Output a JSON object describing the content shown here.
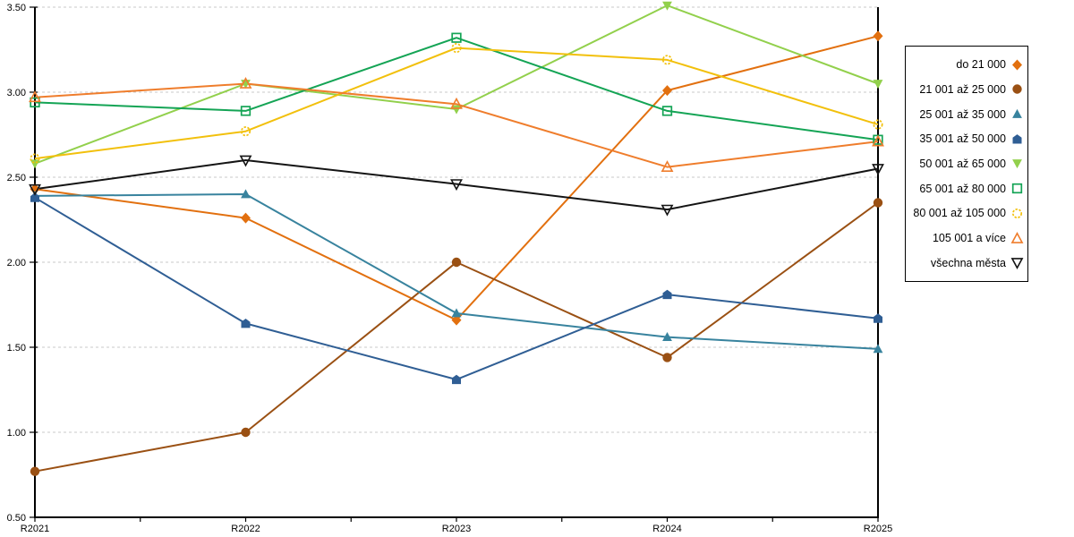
{
  "chart_data": {
    "type": "line",
    "title": "",
    "xlabel": "",
    "ylabel": "",
    "x_categories": [
      "R2021",
      "R2022",
      "R2023",
      "R2024",
      "R2025"
    ],
    "ylim": [
      0.5,
      3.5
    ],
    "ytick_step": 0.5,
    "ytick_labels": [
      "0.50",
      "1.00",
      "1.50",
      "2.00",
      "2.50",
      "3.00",
      "3.50"
    ],
    "grid": "horizontal-dashed",
    "grid_color": "#c8c8c8",
    "axis_color": "#000000",
    "legend_position": "right",
    "series": [
      {
        "name": "do 21 000",
        "marker": "diamond-filled",
        "color": "#E2700F",
        "values": [
          2.43,
          2.26,
          1.66,
          3.01,
          3.33
        ]
      },
      {
        "name": "21 001 až 25 000",
        "marker": "circle-filled",
        "color": "#9A5013",
        "values": [
          0.77,
          1.0,
          2.0,
          1.44,
          2.35
        ]
      },
      {
        "name": "25 001 až 35 000",
        "marker": "triangle-up-filled",
        "color": "#38839E",
        "values": [
          2.39,
          2.4,
          1.7,
          1.56,
          1.49
        ]
      },
      {
        "name": "35 001 až 50 000",
        "marker": "pentagon-filled",
        "color": "#2F5E94",
        "values": [
          2.38,
          1.64,
          1.31,
          1.81,
          1.67
        ]
      },
      {
        "name": "50 001 až 65 000",
        "marker": "triangle-down-filled",
        "color": "#92D04C",
        "values": [
          2.58,
          3.05,
          2.9,
          3.51,
          3.05
        ]
      },
      {
        "name": "65 001 až 80 000",
        "marker": "square-open",
        "color": "#14A455",
        "values": [
          2.94,
          2.89,
          3.32,
          2.89,
          2.72
        ]
      },
      {
        "name": "80 001 až 105 000",
        "marker": "circle-open",
        "color": "#F2C00C",
        "values": [
          2.61,
          2.77,
          3.26,
          3.19,
          2.81
        ]
      },
      {
        "name": "105 001 a více",
        "marker": "triangle-up-open",
        "color": "#EF7D2C",
        "values": [
          2.97,
          3.05,
          2.93,
          2.56,
          2.71
        ]
      },
      {
        "name": "všechna města",
        "marker": "triangle-down-open",
        "color": "#141414",
        "values": [
          2.43,
          2.6,
          2.46,
          2.31,
          2.55
        ]
      }
    ]
  }
}
